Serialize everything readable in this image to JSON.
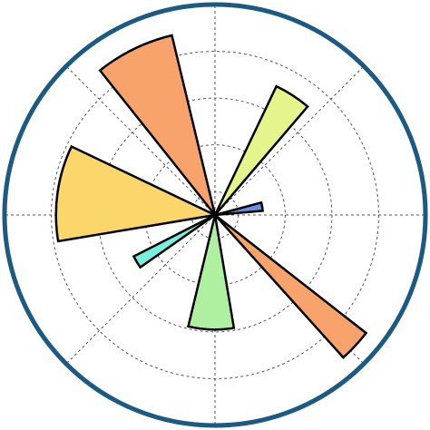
{
  "chart_data": {
    "type": "polar-bar",
    "theta": [
      10,
      57,
      116,
      172,
      211,
      268,
      317
    ],
    "width": [
      10,
      15,
      25,
      35,
      8,
      23,
      10
    ],
    "values": [
      2.05,
      6.1,
      7.9,
      6.8,
      3.9,
      4.9,
      8.2
    ],
    "colors": [
      "#6a8fe8",
      "#e5f58c",
      "#f9a36c",
      "#fbd66b",
      "#78f0e0",
      "#aef0a0",
      "#f9a36c"
    ],
    "rlim": [
      0,
      9
    ],
    "rticks": [
      1,
      3,
      5,
      7
    ],
    "thetaticks": [
      0,
      45,
      90,
      135,
      180,
      225,
      270,
      315
    ],
    "grid": true,
    "spine_color": "#1c5a82"
  }
}
